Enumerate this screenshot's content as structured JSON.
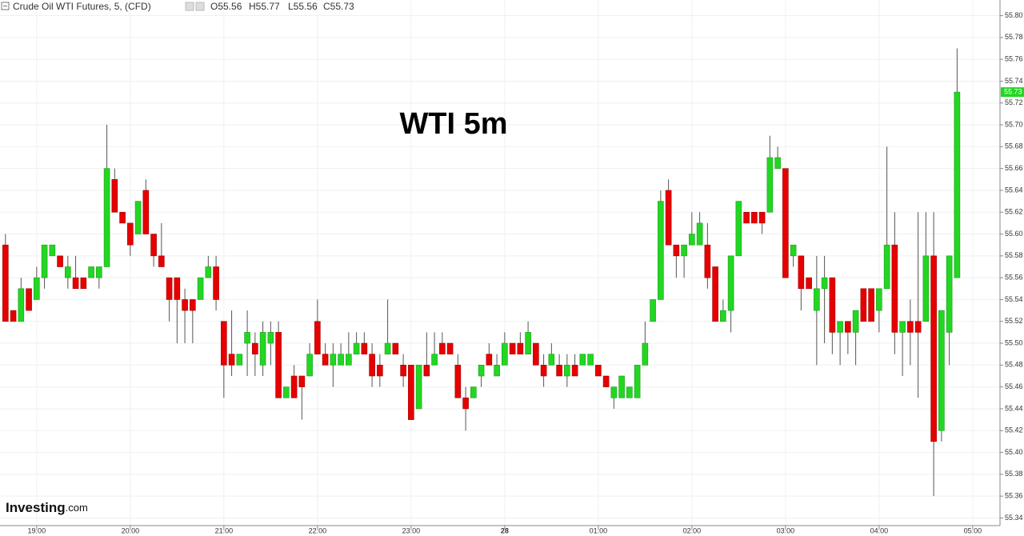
{
  "chart_data": {
    "type": "candlestick",
    "header": "Crude Oil WTI Futures, 5, (CFD)",
    "ohlc_labels": [
      "O55.56",
      "H55.77",
      "L55.56",
      "C55.73"
    ],
    "title": "WTI 5m",
    "logo": {
      "brand": "Investing",
      "domain": ".com"
    },
    "last_price": 55.73,
    "up_color": "#22d622",
    "down_color": "#e60000",
    "grid": true,
    "ylim": [
      55.333,
      55.807
    ],
    "yticks": [
      {
        "value": 55.8,
        "label": "55.80"
      },
      55.78,
      55.76,
      55.74,
      55.72,
      {
        "value": 55.7,
        "label": "55.70"
      },
      55.68,
      55.66,
      55.64,
      55.62,
      {
        "value": 55.6,
        "label": "55.60"
      },
      55.58,
      55.56,
      55.54,
      55.52,
      {
        "value": 55.5,
        "label": "55.50"
      },
      55.48,
      55.46,
      55.44,
      55.42,
      {
        "value": 55.4,
        "label": "55.40"
      },
      55.38,
      55.36,
      55.34
    ],
    "xlim": [
      -0.7,
      127.5
    ],
    "xticks": [
      {
        "value": 4,
        "label": "19:00"
      },
      {
        "value": 16,
        "label": "20:00"
      },
      {
        "value": 28,
        "label": "21:00"
      },
      {
        "value": 40,
        "label": "22:00"
      },
      {
        "value": 52,
        "label": "23:00"
      },
      {
        "value": 64,
        "label": "28"
      },
      {
        "value": 76,
        "label": "01:00"
      },
      {
        "value": 88,
        "label": "02:00"
      },
      {
        "value": 100,
        "label": "03:00"
      },
      {
        "value": 112,
        "label": "04:00"
      },
      {
        "value": 124,
        "label": "05:00"
      }
    ],
    "open": [
      55.59,
      55.53,
      55.52,
      55.55,
      55.54,
      55.56,
      55.58,
      55.58,
      55.56,
      55.56,
      55.56,
      55.56,
      55.56,
      55.57,
      55.65,
      55.62,
      55.61,
      55.6,
      55.64,
      55.6,
      55.58,
      55.56,
      55.56,
      55.54,
      55.54,
      55.54,
      55.56,
      55.57,
      55.52,
      55.49,
      55.48,
      55.5,
      55.5,
      55.48,
      55.5,
      55.51,
      55.45,
      55.47,
      55.47,
      55.47,
      55.52,
      55.49,
      55.48,
      55.48,
      55.48,
      55.49,
      55.5,
      55.49,
      55.48,
      55.49,
      55.5,
      55.48,
      55.48,
      55.44,
      55.48,
      55.48,
      55.5,
      55.5,
      55.48,
      55.45,
      55.45,
      55.47,
      55.49,
      55.47,
      55.48,
      55.5,
      55.5,
      55.49,
      55.5,
      55.48,
      55.48,
      55.48,
      55.47,
      55.48,
      55.48,
      55.48,
      55.48,
      55.47,
      55.45,
      55.45,
      55.45,
      55.45,
      55.48,
      55.52,
      55.54,
      55.64,
      55.59,
      55.58,
      55.59,
      55.59,
      55.59,
      55.57,
      55.52,
      55.53,
      55.58,
      55.62,
      55.62,
      55.62,
      55.62,
      55.66,
      55.66,
      55.58,
      55.58,
      55.56,
      55.53,
      55.55,
      55.56,
      55.51,
      55.52,
      55.51,
      55.55,
      55.55,
      55.53,
      55.55,
      55.59,
      55.51,
      55.52,
      55.52,
      55.52,
      55.58,
      55.42,
      55.51,
      55.56
    ],
    "high": [
      55.6,
      55.53,
      55.56,
      55.55,
      55.57,
      55.59,
      55.59,
      55.58,
      55.58,
      55.58,
      55.56,
      55.57,
      55.57,
      55.7,
      55.66,
      55.62,
      55.61,
      55.63,
      55.65,
      55.6,
      55.61,
      55.56,
      55.56,
      55.55,
      55.54,
      55.56,
      55.58,
      55.58,
      55.52,
      55.53,
      55.49,
      55.53,
      55.51,
      55.52,
      55.52,
      55.52,
      55.46,
      55.48,
      55.47,
      55.5,
      55.54,
      55.5,
      55.5,
      55.5,
      55.51,
      55.51,
      55.51,
      55.5,
      55.49,
      55.54,
      55.5,
      55.49,
      55.48,
      55.48,
      55.51,
      55.51,
      55.51,
      55.5,
      55.49,
      55.46,
      55.46,
      55.48,
      55.5,
      55.49,
      55.51,
      55.5,
      55.51,
      55.52,
      55.5,
      55.49,
      55.5,
      55.49,
      55.49,
      55.49,
      55.49,
      55.49,
      55.48,
      55.47,
      55.46,
      55.47,
      55.46,
      55.48,
      55.52,
      55.54,
      55.64,
      55.65,
      55.59,
      55.59,
      55.62,
      55.62,
      55.61,
      55.57,
      55.54,
      55.58,
      55.63,
      55.62,
      55.62,
      55.62,
      55.69,
      55.68,
      55.66,
      55.59,
      55.58,
      55.56,
      55.58,
      55.58,
      55.56,
      55.52,
      55.52,
      55.53,
      55.55,
      55.55,
      55.55,
      55.68,
      55.62,
      55.52,
      55.54,
      55.62,
      55.62,
      55.62,
      55.53,
      55.58,
      55.77
    ],
    "low": [
      55.52,
      55.52,
      55.52,
      55.53,
      55.54,
      55.55,
      55.58,
      55.57,
      55.55,
      55.55,
      55.55,
      55.56,
      55.55,
      55.57,
      55.62,
      55.61,
      55.58,
      55.6,
      55.6,
      55.57,
      55.57,
      55.52,
      55.5,
      55.5,
      55.5,
      55.54,
      55.56,
      55.53,
      55.45,
      55.47,
      55.48,
      55.47,
      55.47,
      55.47,
      55.48,
      55.45,
      55.45,
      55.45,
      55.43,
      55.47,
      55.49,
      55.48,
      55.46,
      55.48,
      55.48,
      55.49,
      55.49,
      55.46,
      55.46,
      55.49,
      55.49,
      55.46,
      55.43,
      55.44,
      55.47,
      55.48,
      55.49,
      55.49,
      55.45,
      55.42,
      55.45,
      55.46,
      55.48,
      55.47,
      55.48,
      55.49,
      55.49,
      55.49,
      55.48,
      55.46,
      55.48,
      55.47,
      55.46,
      55.47,
      55.48,
      55.48,
      55.47,
      55.46,
      55.44,
      55.45,
      55.45,
      55.45,
      55.48,
      55.52,
      55.54,
      55.59,
      55.56,
      55.56,
      55.59,
      55.59,
      55.55,
      55.52,
      55.52,
      55.51,
      55.58,
      55.61,
      55.61,
      55.6,
      55.62,
      55.66,
      55.56,
      55.57,
      55.53,
      55.55,
      55.48,
      55.5,
      55.49,
      55.48,
      55.49,
      55.48,
      55.52,
      55.52,
      55.51,
      55.55,
      55.49,
      55.47,
      55.48,
      55.45,
      55.52,
      55.36,
      55.41,
      55.48,
      55.56
    ],
    "close": [
      55.52,
      55.52,
      55.55,
      55.53,
      55.56,
      55.59,
      55.59,
      55.57,
      55.57,
      55.55,
      55.55,
      55.57,
      55.57,
      55.66,
      55.62,
      55.61,
      55.59,
      55.63,
      55.6,
      55.58,
      55.57,
      55.54,
      55.54,
      55.53,
      55.53,
      55.56,
      55.57,
      55.54,
      55.48,
      55.48,
      55.49,
      55.51,
      55.49,
      55.51,
      55.51,
      55.45,
      55.46,
      55.45,
      55.46,
      55.49,
      55.49,
      55.48,
      55.49,
      55.49,
      55.49,
      55.5,
      55.49,
      55.47,
      55.47,
      55.5,
      55.49,
      55.47,
      55.43,
      55.48,
      55.47,
      55.49,
      55.49,
      55.49,
      55.45,
      55.44,
      55.46,
      55.48,
      55.48,
      55.48,
      55.5,
      55.49,
      55.49,
      55.51,
      55.48,
      55.47,
      55.49,
      55.47,
      55.48,
      55.47,
      55.49,
      55.49,
      55.47,
      55.46,
      55.46,
      55.47,
      55.46,
      55.48,
      55.5,
      55.54,
      55.63,
      55.59,
      55.58,
      55.59,
      55.6,
      55.61,
      55.56,
      55.52,
      55.53,
      55.58,
      55.63,
      55.61,
      55.61,
      55.61,
      55.67,
      55.67,
      55.56,
      55.59,
      55.55,
      55.55,
      55.55,
      55.56,
      55.51,
      55.52,
      55.51,
      55.53,
      55.52,
      55.52,
      55.55,
      55.59,
      55.51,
      55.52,
      55.51,
      55.51,
      55.58,
      55.41,
      55.53,
      55.58,
      55.73
    ]
  }
}
